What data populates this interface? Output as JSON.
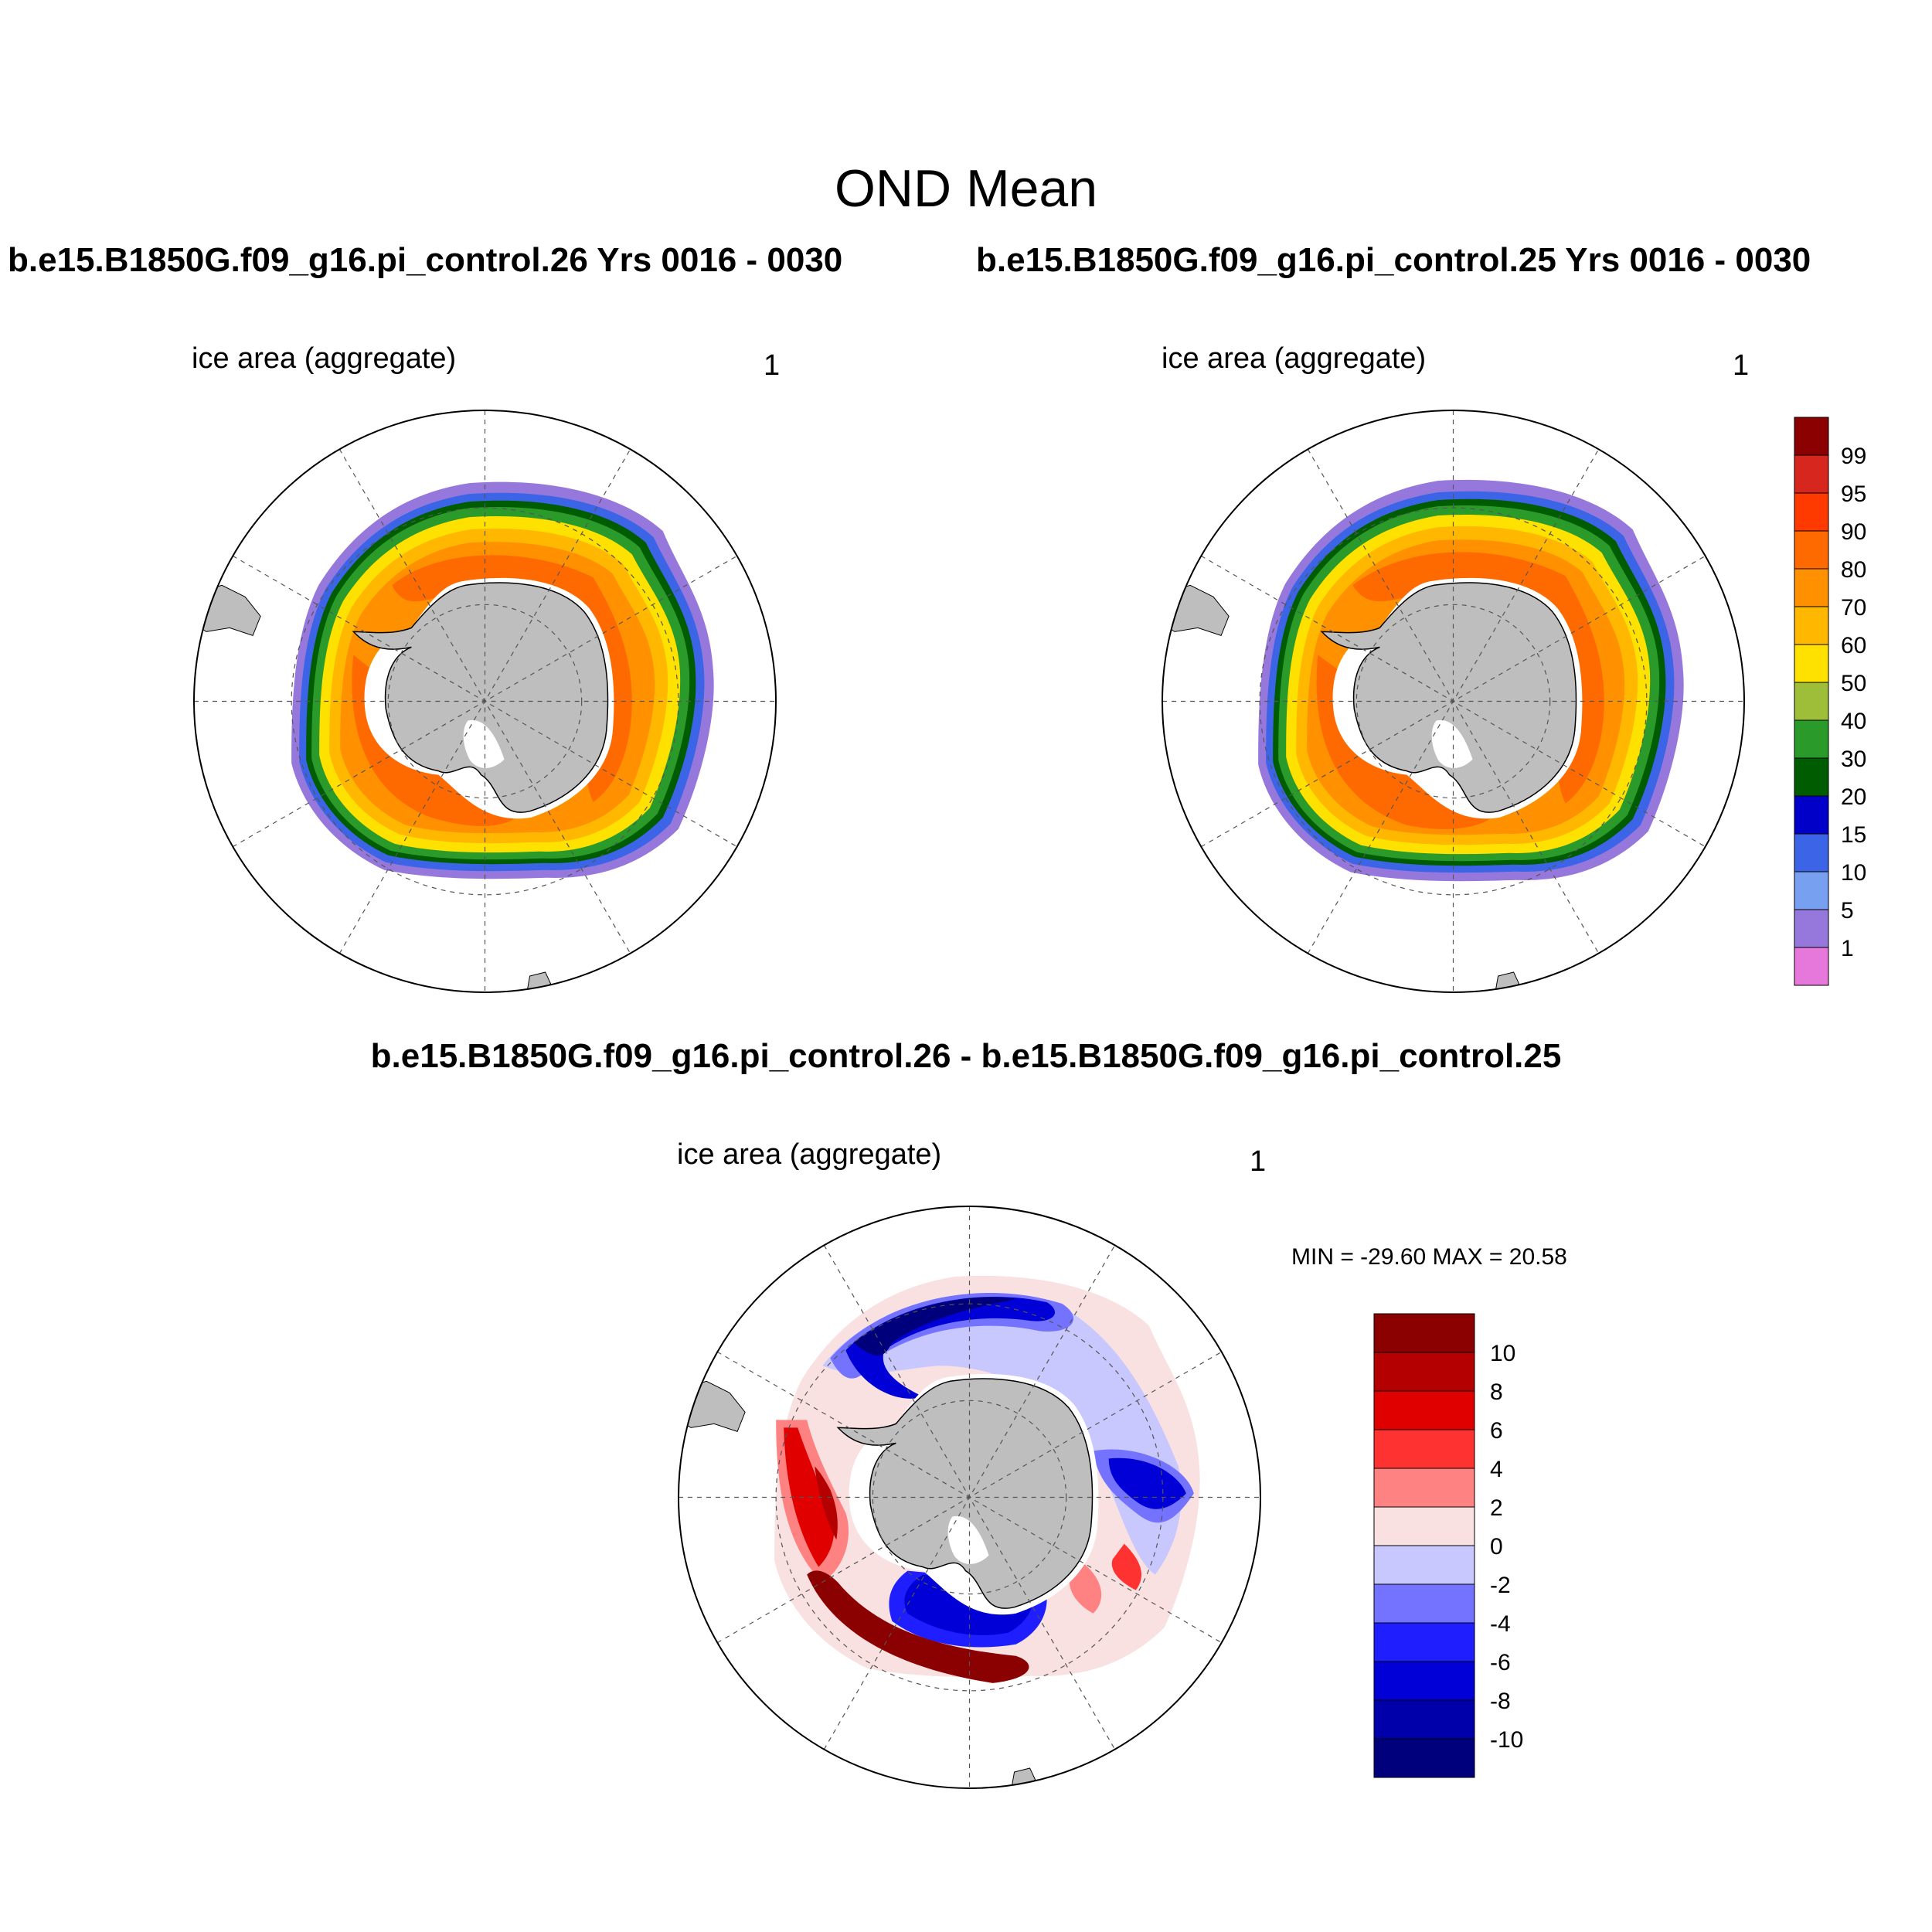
{
  "figure": {
    "title": "OND Mean"
  },
  "panels": [
    {
      "id": "case1",
      "case_title": "b.e15.B1850G.f09_g16.pi_control.26  Yrs 0016 - 0030",
      "variable_label": "ice area  (aggregate)",
      "units_label": "1"
    },
    {
      "id": "case2",
      "case_title": "b.e15.B1850G.f09_g16.pi_control.25  Yrs 0016 - 0030",
      "variable_label": "ice area  (aggregate)",
      "units_label": "1"
    },
    {
      "id": "difference",
      "case_title": "b.e15.B1850G.f09_g16.pi_control.26 - b.e15.B1850G.f09_g16.pi_control.25",
      "variable_label": "ice area  (aggregate)",
      "units_label": "1",
      "minmax_text": "MIN = -29.60 MAX =  20.58"
    }
  ],
  "colorbars": {
    "concentration": {
      "labels": [
        "99",
        "95",
        "90",
        "80",
        "70",
        "60",
        "50",
        "40",
        "30",
        "20",
        "15",
        "10",
        "5",
        "1"
      ],
      "colors": [
        "#8b0000",
        "#d7261e",
        "#ff3a00",
        "#ff6a00",
        "#ff9100",
        "#ffb700",
        "#ffe100",
        "#9ebe3a",
        "#2a9a2a",
        "#005c00",
        "#0000c8",
        "#3c64e6",
        "#78a0f0",
        "#9678dc",
        "#e678dc"
      ]
    },
    "difference": {
      "labels": [
        "10",
        "8",
        "6",
        "4",
        "2",
        "0",
        "-2",
        "-4",
        "-6",
        "-8",
        "-10"
      ],
      "colors": [
        "#8b0000",
        "#b40000",
        "#e00000",
        "#ff3232",
        "#ff8282",
        "#fae1e1",
        "#c8c8ff",
        "#7373ff",
        "#1e1eff",
        "#0000d7",
        "#0000aa",
        "#00007d"
      ]
    }
  }
}
